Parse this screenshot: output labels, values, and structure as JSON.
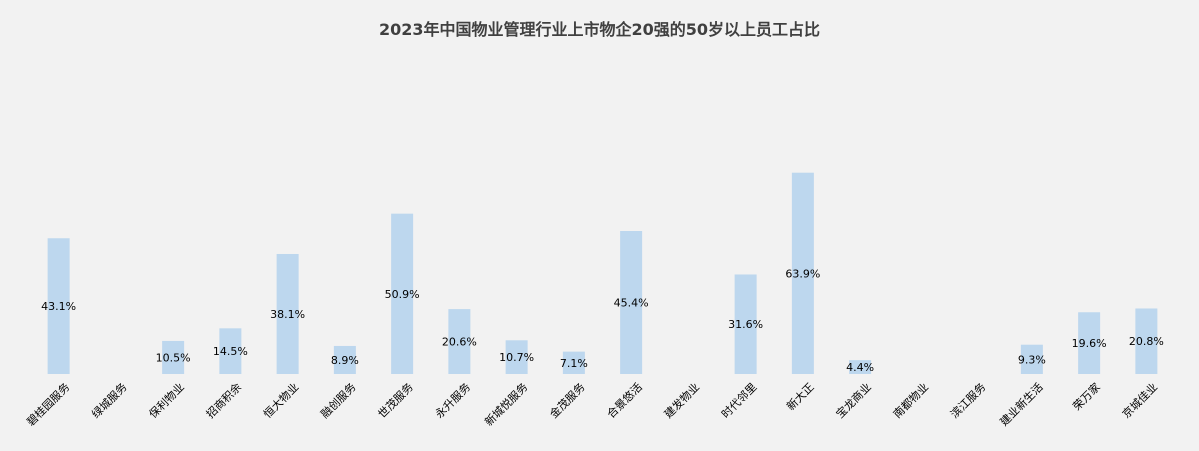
{
  "chart_data": {
    "type": "bar",
    "title": "2023年中国物业管理行业上市物企20强的50岁以上员工占比",
    "categories": [
      "碧桂园服务",
      "绿城服务",
      "保利物业",
      "招商积余",
      "恒大物业",
      "融创服务",
      "世茂服务",
      "永升服务",
      "新城悦服务",
      "金茂服务",
      "合景悠活",
      "建发物业",
      "时代邻里",
      "新大正",
      "宝龙商业",
      "南都物业",
      "滨江服务",
      "建业新生活",
      "荣万家",
      "京城佳业"
    ],
    "values": [
      43.1,
      null,
      10.5,
      14.5,
      38.1,
      8.9,
      50.9,
      20.6,
      10.7,
      7.1,
      45.4,
      null,
      31.6,
      63.9,
      4.4,
      null,
      null,
      9.3,
      19.6,
      20.8
    ],
    "labels": [
      "43.1%",
      "",
      "10.5%",
      "14.5%",
      "38.1%",
      "8.9%",
      "50.9%",
      "20.6%",
      "10.7%",
      "7.1%",
      "45.4%",
      "",
      "31.6%",
      "63.9%",
      "4.4%",
      "",
      "",
      "9.3%",
      "19.6%",
      "20.8%"
    ],
    "xlabel": "",
    "ylabel": "",
    "ylim": [
      0,
      100
    ],
    "grid": false,
    "legend": "none",
    "bar_color": "#bdd7ee",
    "background": "#f2f2f2"
  }
}
